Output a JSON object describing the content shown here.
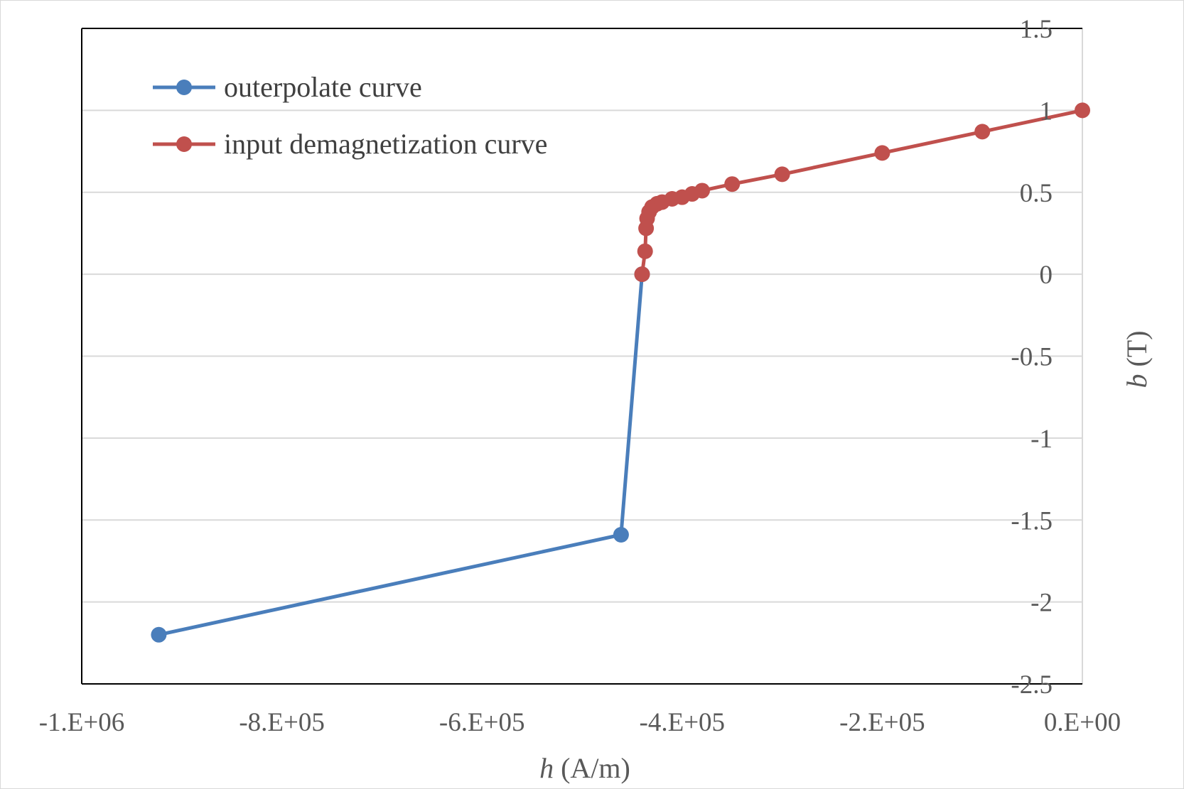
{
  "chart_data": {
    "type": "line",
    "xlabel": {
      "var": "h",
      "unit": " (A/m)"
    },
    "ylabel": {
      "var": "b",
      "unit": " (T)"
    },
    "xlim": [
      -1000000,
      0
    ],
    "ylim": [
      -2.5,
      1.5
    ],
    "x_ticks": [
      -1000000,
      -800000,
      -600000,
      -400000,
      -200000,
      0
    ],
    "x_tick_labels": [
      "-1.E+06",
      "-8.E+05",
      "-6.E+05",
      "-4.E+05",
      "-2.E+05",
      "0.E+00"
    ],
    "y_ticks": [
      1.5,
      1,
      0.5,
      0,
      -0.5,
      -1,
      -1.5,
      -2,
      -2.5
    ],
    "y_tick_labels": [
      "1.5",
      "1",
      "0.5",
      "0",
      "-0.5",
      "-1",
      "-1.5",
      "-2",
      "-2.5"
    ],
    "grid": "horizontal",
    "y_axis_side": "right",
    "legend": "top-left",
    "series": [
      {
        "name": "outerpolate curve",
        "color": "#4a7ebb",
        "points": [
          [
            -923000,
            -2.2
          ],
          [
            -461000,
            -1.59
          ],
          [
            -440000,
            0.0
          ]
        ]
      },
      {
        "name": "input demagnetization curve",
        "color": "#c0504d",
        "points": [
          [
            -440000,
            0.0
          ],
          [
            -437000,
            0.14
          ],
          [
            -436000,
            0.28
          ],
          [
            -435000,
            0.34
          ],
          [
            -433000,
            0.38
          ],
          [
            -430000,
            0.41
          ],
          [
            -425000,
            0.43
          ],
          [
            -420000,
            0.44
          ],
          [
            -410000,
            0.46
          ],
          [
            -400000,
            0.47
          ],
          [
            -390000,
            0.49
          ],
          [
            -380000,
            0.51
          ],
          [
            -350000,
            0.55
          ],
          [
            -300000,
            0.61
          ],
          [
            -200000,
            0.74
          ],
          [
            -100000,
            0.87
          ],
          [
            0,
            1.0
          ]
        ]
      }
    ]
  }
}
